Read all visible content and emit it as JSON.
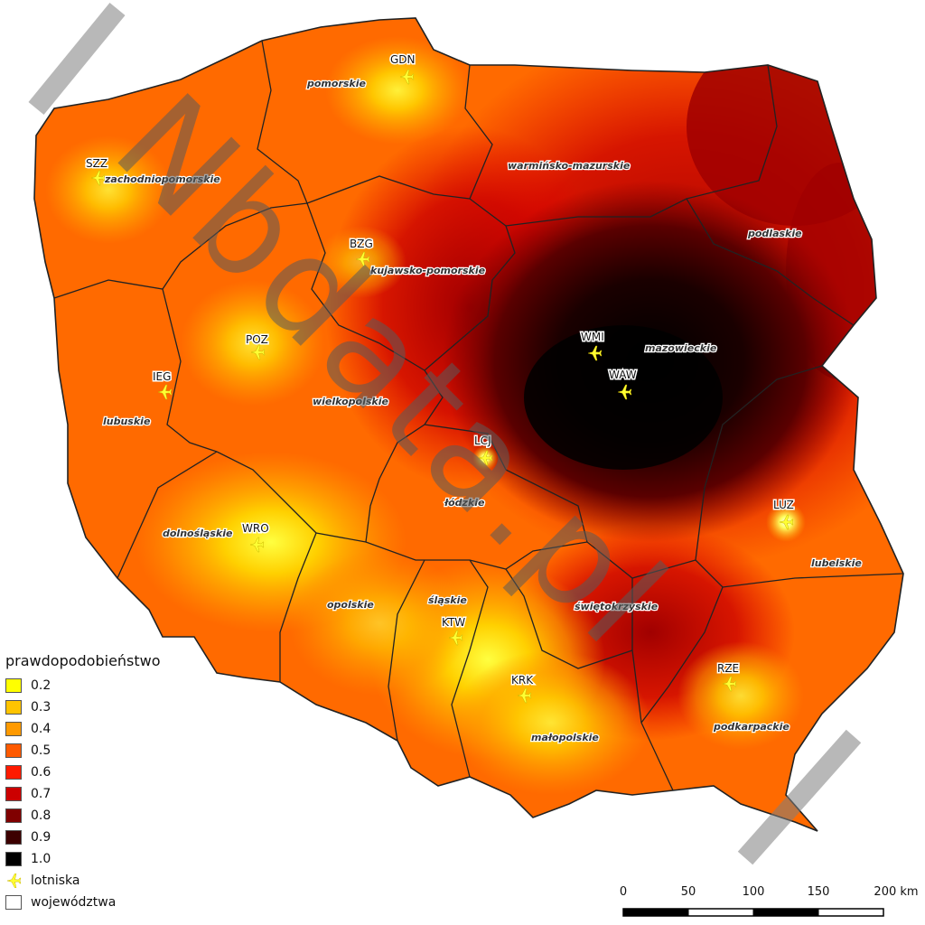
{
  "legend": {
    "title": "prawdopodobieństwo",
    "items": [
      {
        "label": "0.2",
        "color": "#ffff00"
      },
      {
        "label": "0.3",
        "color": "#ffc400"
      },
      {
        "label": "0.4",
        "color": "#ff9a00"
      },
      {
        "label": "0.5",
        "color": "#ff5a00"
      },
      {
        "label": "0.6",
        "color": "#ff1a00"
      },
      {
        "label": "0.7",
        "color": "#cc0000"
      },
      {
        "label": "0.8",
        "color": "#800000"
      },
      {
        "label": "0.9",
        "color": "#3c0000"
      },
      {
        "label": "1.0",
        "color": "#000000"
      }
    ],
    "airports_label": "lotniska",
    "regions_label": "województwa"
  },
  "scale": {
    "ticks": [
      "0",
      "50",
      "100",
      "150",
      "200 km"
    ]
  },
  "regions": [
    {
      "name": "pomorskie"
    },
    {
      "name": "zachodniopomorskie"
    },
    {
      "name": "warmińsko-mazurskie"
    },
    {
      "name": "kujawsko-pomorskie"
    },
    {
      "name": "podlaskie"
    },
    {
      "name": "mazowieckie"
    },
    {
      "name": "wielkopolskie"
    },
    {
      "name": "lubuskie"
    },
    {
      "name": "łódzkie"
    },
    {
      "name": "dolnośląskie"
    },
    {
      "name": "lubelskie"
    },
    {
      "name": "śląskie"
    },
    {
      "name": "opolskie"
    },
    {
      "name": "świętokrzyskie"
    },
    {
      "name": "małopolskie"
    },
    {
      "name": "podkarpackie"
    }
  ],
  "airports": [
    {
      "code": "GDN"
    },
    {
      "code": "SZZ"
    },
    {
      "code": "BZG"
    },
    {
      "code": "POZ"
    },
    {
      "code": "IEG"
    },
    {
      "code": "WMI"
    },
    {
      "code": "WAW"
    },
    {
      "code": "LCJ"
    },
    {
      "code": "LUZ"
    },
    {
      "code": "WRO"
    },
    {
      "code": "KTW"
    },
    {
      "code": "KRK"
    },
    {
      "code": "RZE"
    }
  ],
  "watermark": "Nbdata.pl",
  "colors": {
    "airport_marker": "#ffff33",
    "border": "#222222",
    "watermark": "#7f7f7f"
  }
}
